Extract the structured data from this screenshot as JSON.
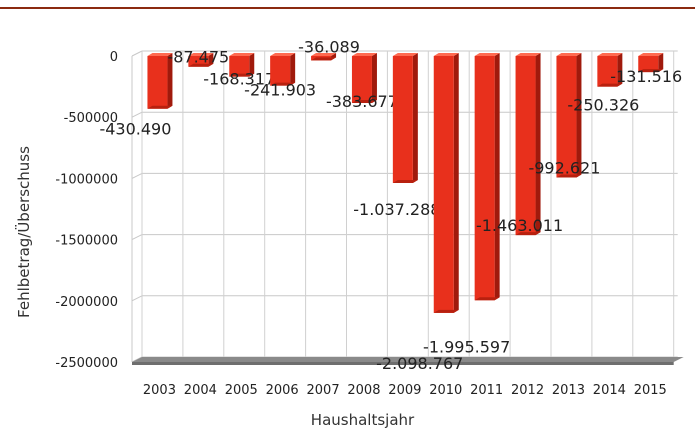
{
  "chart_data": {
    "type": "bar",
    "categories": [
      "2003",
      "2004",
      "2005",
      "2006",
      "2007",
      "2008",
      "2009",
      "2010",
      "2011",
      "2012",
      "2013",
      "2014",
      "2015"
    ],
    "values": [
      -430490,
      -87475,
      -168317,
      -241903,
      -36089,
      -383677,
      -1037288,
      -2098767,
      -1995597,
      -1463011,
      -992621,
      -250326,
      -131516
    ],
    "data_labels": [
      "-430.490",
      "-87.475",
      "-168.317",
      "-241.903",
      "-36.089",
      "-383.677",
      "-1.037.288",
      "-2.098.767",
      "-1.995.597",
      "-1.463.011",
      "-992.621",
      "-250.326",
      "-131.516"
    ],
    "xlabel": "Haushaltsjahr",
    "ylabel": "Fehlbetrag/Überschuss",
    "yticks": [
      "0",
      "-500000",
      "-1000000",
      "-1500000",
      "-2000000",
      "-2500000"
    ],
    "ylim": [
      -2500000,
      0
    ],
    "grid": true,
    "bar_color": "#e8301c"
  }
}
